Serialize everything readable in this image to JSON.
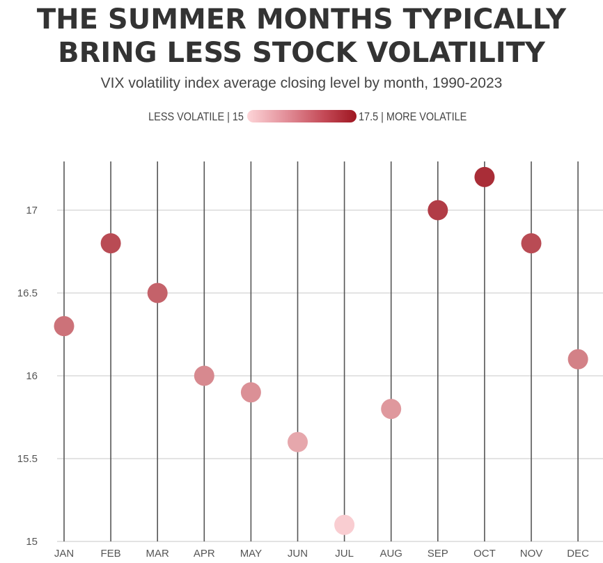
{
  "header": {
    "title_line1": "THE SUMMER MONTHS TYPICALLY",
    "title_line2": "BRING LESS STOCK VOLATILITY",
    "subtitle": "VIX volatility index average closing level by month, 1990-2023"
  },
  "legend": {
    "left_label": "LESS VOLATILE | 15",
    "right_label": "17.5 | MORE VOLATILE",
    "min": 15,
    "max": 17.5,
    "color_low": "#fdd5d8",
    "color_high": "#9e1621"
  },
  "chart_data": {
    "type": "scatter",
    "title": "THE SUMMER MONTHS TYPICALLY BRING LESS STOCK VOLATILITY",
    "subtitle": "VIX volatility index average closing level by month, 1990-2023",
    "xlabel": "",
    "ylabel": "",
    "categories": [
      "JAN",
      "FEB",
      "MAR",
      "APR",
      "MAY",
      "JUN",
      "JUL",
      "AUG",
      "SEP",
      "OCT",
      "NOV",
      "DEC"
    ],
    "values": [
      16.3,
      16.8,
      16.5,
      16.0,
      15.9,
      15.6,
      15.1,
      15.8,
      17.0,
      17.2,
      16.8,
      16.1
    ],
    "ylim": [
      15,
      17.3
    ],
    "yticks": [
      15,
      15.5,
      16,
      16.5,
      17
    ],
    "ytick_labels": [
      "15",
      "15.5",
      "16",
      "16.5",
      "17"
    ],
    "grid": true,
    "color_scale": {
      "min": 15,
      "max": 17.5,
      "low": "#fdd5d8",
      "high": "#9e1621"
    }
  }
}
